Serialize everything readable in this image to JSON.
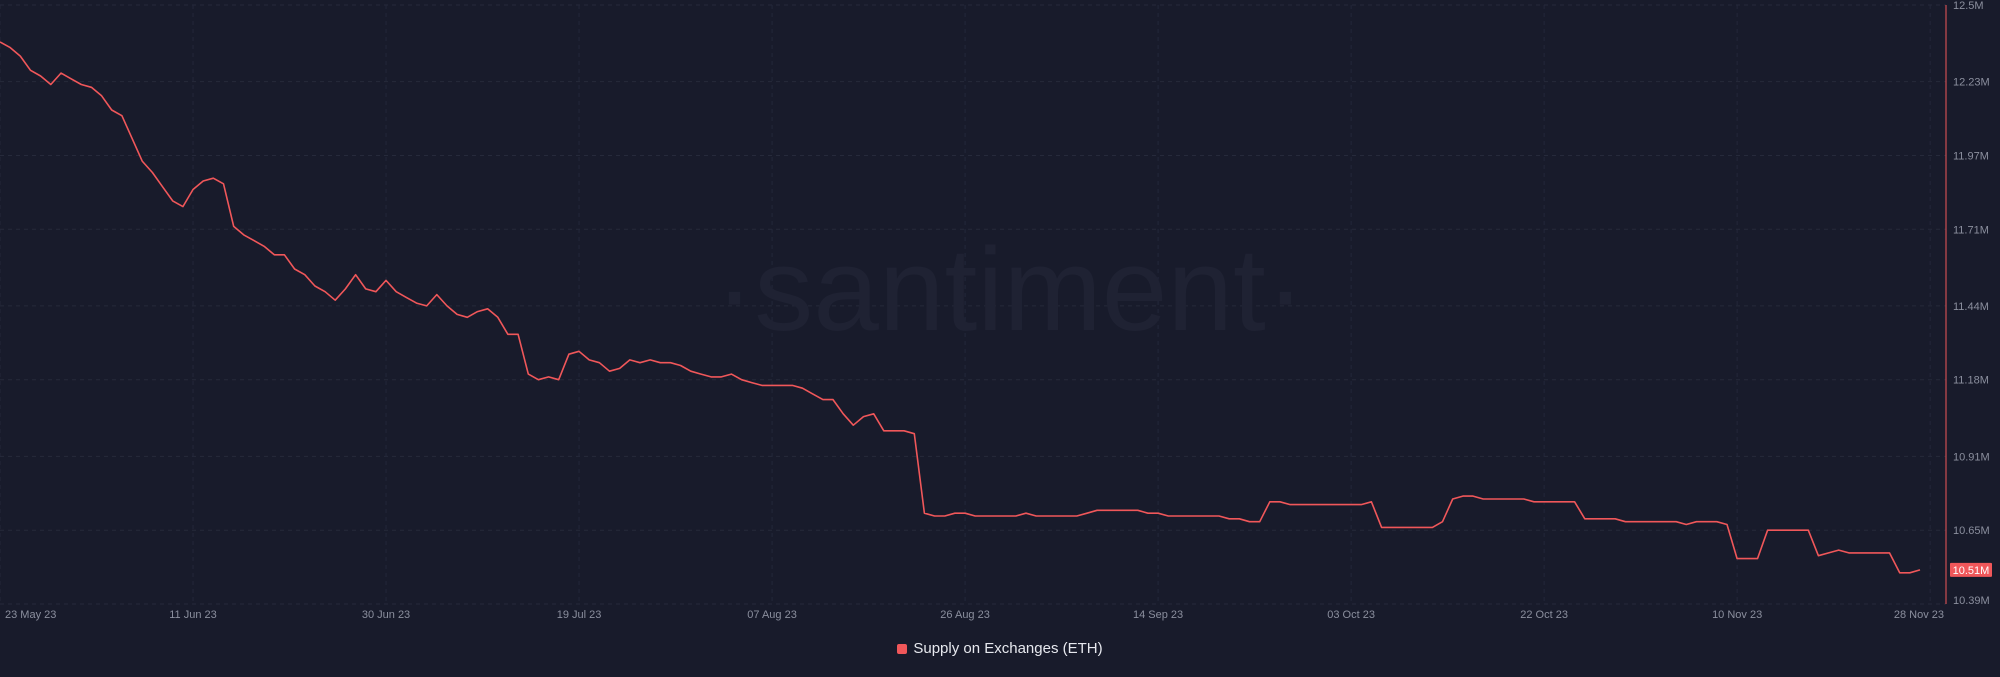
{
  "chart_data": {
    "type": "line",
    "title": "",
    "xlabel": "",
    "ylabel": "",
    "watermark": "·santiment·",
    "x_ticks": [
      "23 May 23",
      "11 Jun 23",
      "30 Jun 23",
      "19 Jul 23",
      "07 Aug 23",
      "26 Aug 23",
      "14 Sep 23",
      "03 Oct 23",
      "22 Oct 23",
      "10 Nov 23",
      "28 Nov 23"
    ],
    "y_ticks": [
      "12.5M",
      "12.23M",
      "11.97M",
      "11.71M",
      "11.44M",
      "11.18M",
      "10.91M",
      "10.65M",
      "10.39M"
    ],
    "y_tick_values": [
      12.5,
      12.23,
      11.97,
      11.71,
      11.44,
      11.18,
      10.91,
      10.65,
      10.39
    ],
    "ylim": [
      10.39,
      12.5
    ],
    "grid": true,
    "legend_position": "bottom-center",
    "current_value_label": "10.51M",
    "current_value": 10.51,
    "series": [
      {
        "name": "Supply on Exchanges (ETH)",
        "color": "#f0575a",
        "points": [
          [
            "2023-05-23",
            12.37
          ],
          [
            "2023-05-24",
            12.35
          ],
          [
            "2023-05-25",
            12.32
          ],
          [
            "2023-05-26",
            12.27
          ],
          [
            "2023-05-27",
            12.25
          ],
          [
            "2023-05-28",
            12.22
          ],
          [
            "2023-05-29",
            12.26
          ],
          [
            "2023-05-30",
            12.24
          ],
          [
            "2023-05-31",
            12.22
          ],
          [
            "2023-06-01",
            12.21
          ],
          [
            "2023-06-02",
            12.18
          ],
          [
            "2023-06-03",
            12.13
          ],
          [
            "2023-06-04",
            12.11
          ],
          [
            "2023-06-05",
            12.03
          ],
          [
            "2023-06-06",
            11.95
          ],
          [
            "2023-06-07",
            11.91
          ],
          [
            "2023-06-08",
            11.86
          ],
          [
            "2023-06-09",
            11.81
          ],
          [
            "2023-06-10",
            11.79
          ],
          [
            "2023-06-11",
            11.85
          ],
          [
            "2023-06-12",
            11.88
          ],
          [
            "2023-06-13",
            11.89
          ],
          [
            "2023-06-14",
            11.87
          ],
          [
            "2023-06-15",
            11.72
          ],
          [
            "2023-06-16",
            11.69
          ],
          [
            "2023-06-17",
            11.67
          ],
          [
            "2023-06-18",
            11.65
          ],
          [
            "2023-06-19",
            11.62
          ],
          [
            "2023-06-20",
            11.62
          ],
          [
            "2023-06-21",
            11.57
          ],
          [
            "2023-06-22",
            11.55
          ],
          [
            "2023-06-23",
            11.51
          ],
          [
            "2023-06-24",
            11.49
          ],
          [
            "2023-06-25",
            11.46
          ],
          [
            "2023-06-26",
            11.5
          ],
          [
            "2023-06-27",
            11.55
          ],
          [
            "2023-06-28",
            11.5
          ],
          [
            "2023-06-29",
            11.49
          ],
          [
            "2023-06-30",
            11.53
          ],
          [
            "2023-07-01",
            11.49
          ],
          [
            "2023-07-02",
            11.47
          ],
          [
            "2023-07-03",
            11.45
          ],
          [
            "2023-07-04",
            11.44
          ],
          [
            "2023-07-05",
            11.48
          ],
          [
            "2023-07-06",
            11.44
          ],
          [
            "2023-07-07",
            11.41
          ],
          [
            "2023-07-08",
            11.4
          ],
          [
            "2023-07-09",
            11.42
          ],
          [
            "2023-07-10",
            11.43
          ],
          [
            "2023-07-11",
            11.4
          ],
          [
            "2023-07-12",
            11.34
          ],
          [
            "2023-07-13",
            11.34
          ],
          [
            "2023-07-14",
            11.2
          ],
          [
            "2023-07-15",
            11.18
          ],
          [
            "2023-07-16",
            11.19
          ],
          [
            "2023-07-17",
            11.18
          ],
          [
            "2023-07-18",
            11.27
          ],
          [
            "2023-07-19",
            11.28
          ],
          [
            "2023-07-20",
            11.25
          ],
          [
            "2023-07-21",
            11.24
          ],
          [
            "2023-07-22",
            11.21
          ],
          [
            "2023-07-23",
            11.22
          ],
          [
            "2023-07-24",
            11.25
          ],
          [
            "2023-07-25",
            11.24
          ],
          [
            "2023-07-26",
            11.25
          ],
          [
            "2023-07-27",
            11.24
          ],
          [
            "2023-07-28",
            11.24
          ],
          [
            "2023-07-29",
            11.23
          ],
          [
            "2023-07-30",
            11.21
          ],
          [
            "2023-07-31",
            11.2
          ],
          [
            "2023-08-01",
            11.19
          ],
          [
            "2023-08-02",
            11.19
          ],
          [
            "2023-08-03",
            11.2
          ],
          [
            "2023-08-04",
            11.18
          ],
          [
            "2023-08-05",
            11.17
          ],
          [
            "2023-08-06",
            11.16
          ],
          [
            "2023-08-07",
            11.16
          ],
          [
            "2023-08-08",
            11.16
          ],
          [
            "2023-08-09",
            11.16
          ],
          [
            "2023-08-10",
            11.15
          ],
          [
            "2023-08-11",
            11.13
          ],
          [
            "2023-08-12",
            11.11
          ],
          [
            "2023-08-13",
            11.11
          ],
          [
            "2023-08-14",
            11.06
          ],
          [
            "2023-08-15",
            11.02
          ],
          [
            "2023-08-16",
            11.05
          ],
          [
            "2023-08-17",
            11.06
          ],
          [
            "2023-08-18",
            11.0
          ],
          [
            "2023-08-19",
            11.0
          ],
          [
            "2023-08-20",
            11.0
          ],
          [
            "2023-08-21",
            10.99
          ],
          [
            "2023-08-22",
            10.71
          ],
          [
            "2023-08-23",
            10.7
          ],
          [
            "2023-08-24",
            10.7
          ],
          [
            "2023-08-25",
            10.71
          ],
          [
            "2023-08-26",
            10.71
          ],
          [
            "2023-08-27",
            10.7
          ],
          [
            "2023-08-28",
            10.7
          ],
          [
            "2023-08-29",
            10.7
          ],
          [
            "2023-08-30",
            10.7
          ],
          [
            "2023-08-31",
            10.7
          ],
          [
            "2023-09-01",
            10.71
          ],
          [
            "2023-09-02",
            10.7
          ],
          [
            "2023-09-03",
            10.7
          ],
          [
            "2023-09-04",
            10.7
          ],
          [
            "2023-09-05",
            10.7
          ],
          [
            "2023-09-06",
            10.7
          ],
          [
            "2023-09-07",
            10.71
          ],
          [
            "2023-09-08",
            10.72
          ],
          [
            "2023-09-09",
            10.72
          ],
          [
            "2023-09-10",
            10.72
          ],
          [
            "2023-09-11",
            10.72
          ],
          [
            "2023-09-12",
            10.72
          ],
          [
            "2023-09-13",
            10.71
          ],
          [
            "2023-09-14",
            10.71
          ],
          [
            "2023-09-15",
            10.7
          ],
          [
            "2023-09-16",
            10.7
          ],
          [
            "2023-09-17",
            10.7
          ],
          [
            "2023-09-18",
            10.7
          ],
          [
            "2023-09-19",
            10.7
          ],
          [
            "2023-09-20",
            10.7
          ],
          [
            "2023-09-21",
            10.69
          ],
          [
            "2023-09-22",
            10.69
          ],
          [
            "2023-09-23",
            10.68
          ],
          [
            "2023-09-24",
            10.68
          ],
          [
            "2023-09-25",
            10.75
          ],
          [
            "2023-09-26",
            10.75
          ],
          [
            "2023-09-27",
            10.74
          ],
          [
            "2023-09-28",
            10.74
          ],
          [
            "2023-09-29",
            10.74
          ],
          [
            "2023-09-30",
            10.74
          ],
          [
            "2023-10-01",
            10.74
          ],
          [
            "2023-10-02",
            10.74
          ],
          [
            "2023-10-03",
            10.74
          ],
          [
            "2023-10-04",
            10.74
          ],
          [
            "2023-10-05",
            10.75
          ],
          [
            "2023-10-06",
            10.66
          ],
          [
            "2023-10-07",
            10.66
          ],
          [
            "2023-10-08",
            10.66
          ],
          [
            "2023-10-09",
            10.66
          ],
          [
            "2023-10-10",
            10.66
          ],
          [
            "2023-10-11",
            10.66
          ],
          [
            "2023-10-12",
            10.68
          ],
          [
            "2023-10-13",
            10.76
          ],
          [
            "2023-10-14",
            10.77
          ],
          [
            "2023-10-15",
            10.77
          ],
          [
            "2023-10-16",
            10.76
          ],
          [
            "2023-10-17",
            10.76
          ],
          [
            "2023-10-18",
            10.76
          ],
          [
            "2023-10-19",
            10.76
          ],
          [
            "2023-10-20",
            10.76
          ],
          [
            "2023-10-21",
            10.75
          ],
          [
            "2023-10-22",
            10.75
          ],
          [
            "2023-10-23",
            10.75
          ],
          [
            "2023-10-24",
            10.75
          ],
          [
            "2023-10-25",
            10.75
          ],
          [
            "2023-10-26",
            10.69
          ],
          [
            "2023-10-27",
            10.69
          ],
          [
            "2023-10-28",
            10.69
          ],
          [
            "2023-10-29",
            10.69
          ],
          [
            "2023-10-30",
            10.68
          ],
          [
            "2023-10-31",
            10.68
          ],
          [
            "2023-11-01",
            10.68
          ],
          [
            "2023-11-02",
            10.68
          ],
          [
            "2023-11-03",
            10.68
          ],
          [
            "2023-11-04",
            10.68
          ],
          [
            "2023-11-05",
            10.67
          ],
          [
            "2023-11-06",
            10.68
          ],
          [
            "2023-11-07",
            10.68
          ],
          [
            "2023-11-08",
            10.68
          ],
          [
            "2023-11-09",
            10.67
          ],
          [
            "2023-11-10",
            10.55
          ],
          [
            "2023-11-11",
            10.55
          ],
          [
            "2023-11-12",
            10.55
          ],
          [
            "2023-11-13",
            10.65
          ],
          [
            "2023-11-14",
            10.65
          ],
          [
            "2023-11-15",
            10.65
          ],
          [
            "2023-11-16",
            10.65
          ],
          [
            "2023-11-17",
            10.65
          ],
          [
            "2023-11-18",
            10.56
          ],
          [
            "2023-11-19",
            10.57
          ],
          [
            "2023-11-20",
            10.58
          ],
          [
            "2023-11-21",
            10.57
          ],
          [
            "2023-11-22",
            10.57
          ],
          [
            "2023-11-23",
            10.57
          ],
          [
            "2023-11-24",
            10.57
          ],
          [
            "2023-11-25",
            10.57
          ],
          [
            "2023-11-26",
            10.5
          ],
          [
            "2023-11-27",
            10.5
          ],
          [
            "2023-11-28",
            10.51
          ]
        ]
      }
    ]
  }
}
